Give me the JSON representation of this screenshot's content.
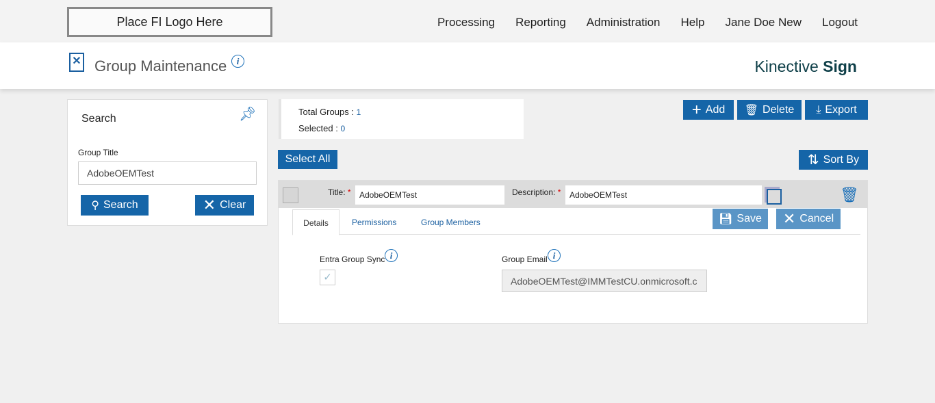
{
  "logo": "Place FI Logo Here",
  "nav": [
    "Processing",
    "Reporting",
    "Administration",
    "Help",
    "Jane Doe New",
    "Logout"
  ],
  "header": {
    "title": "Group Maintenance",
    "brand_light": "Kinective",
    "brand_bold": "Sign"
  },
  "search": {
    "title": "Search",
    "field_label": "Group Title",
    "field_value": "AdobeOEMTest",
    "search_label": "Search",
    "clear_label": "Clear"
  },
  "stats": {
    "total_label": "Total Groups :",
    "total": "1",
    "selected_label": "Selected :",
    "selected": "0"
  },
  "toolbar": {
    "add": "Add",
    "delete": "Delete",
    "export": "Export",
    "select_all": "Select All",
    "sort_by": "Sort By"
  },
  "group": {
    "title_label": "Title:",
    "title_value": "AdobeOEMTest",
    "desc_label": "Description:",
    "desc_value": "AdobeOEMTest",
    "tabs": [
      "Details",
      "Permissions",
      "Group Members"
    ],
    "save": "Save",
    "cancel": "Cancel",
    "sync_label": "Entra Group Sync",
    "sync_checked": true,
    "email_label": "Group Email",
    "email_value": "AdobeOEMTest@IMMTestCU.onmicrosoft.c"
  }
}
